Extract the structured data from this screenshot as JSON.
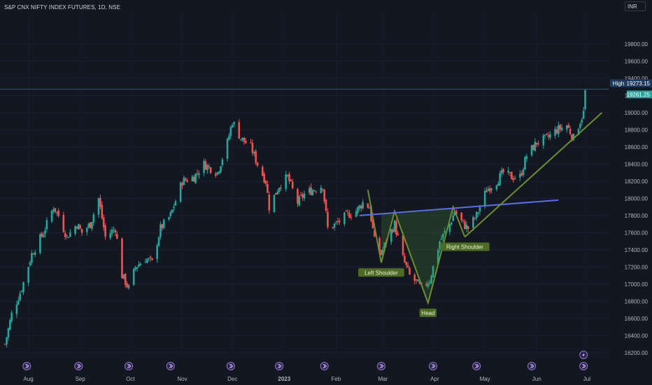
{
  "header": {
    "title": "S&P CNX NIFTY INDEX FUTURES, 1D, NSE",
    "currency": "INR"
  },
  "price_tags": {
    "high_label": "High",
    "high_value": "19273.15",
    "last_value": "19261.25"
  },
  "colors": {
    "background": "#131722",
    "up": "#26a69a",
    "down": "#ef5350",
    "pattern_line": "#6b8f2f",
    "neckline": "#5b6ee1",
    "label_bg": "#4e6b26",
    "last_tag": "#26a69a",
    "high_tag": "#1e3a5f"
  },
  "chart_data": {
    "type": "candlestick",
    "title": "S&P CNX NIFTY INDEX FUTURES, 1D, NSE",
    "x_tick_labels": [
      "Aug",
      "Sep",
      "Oct",
      "Nov",
      "Dec",
      "2023",
      "Feb",
      "Mar",
      "Apr",
      "May",
      "Jun",
      "Jul"
    ],
    "y_tick_labels": [
      19800,
      19600,
      19400,
      19200,
      19000,
      18800,
      18600,
      18400,
      18200,
      18000,
      17800,
      17600,
      17400,
      17200,
      17000,
      16800,
      16600,
      16400,
      16200
    ],
    "ylim": [
      16150,
      20150
    ],
    "x_range": [
      "2022-07-15",
      "2023-07-14"
    ],
    "high_line": 19273.15,
    "last_price": 19261.25,
    "price_path_close": [
      [
        "2022-07-18",
        16300
      ],
      [
        "2022-07-22",
        16650
      ],
      [
        "2022-07-28",
        16950
      ],
      [
        "2022-08-03",
        17350
      ],
      [
        "2022-08-10",
        17600
      ],
      [
        "2022-08-16",
        17900
      ],
      [
        "2022-08-19",
        17800
      ],
      [
        "2022-08-24",
        17550
      ],
      [
        "2022-08-30",
        17700
      ],
      [
        "2022-09-02",
        17600
      ],
      [
        "2022-09-07",
        17700
      ],
      [
        "2022-09-12",
        18000
      ],
      [
        "2022-09-16",
        17550
      ],
      [
        "2022-09-22",
        17650
      ],
      [
        "2022-09-26",
        17100
      ],
      [
        "2022-09-30",
        16950
      ],
      [
        "2022-10-04",
        17200
      ],
      [
        "2022-10-10",
        17300
      ],
      [
        "2022-10-14",
        17250
      ],
      [
        "2022-10-19",
        17650
      ],
      [
        "2022-10-25",
        17800
      ],
      [
        "2022-11-01",
        18200
      ],
      [
        "2022-11-08",
        18250
      ],
      [
        "2022-11-14",
        18400
      ],
      [
        "2022-11-18",
        18350
      ],
      [
        "2022-11-22",
        18300
      ],
      [
        "2022-11-28",
        18650
      ],
      [
        "2022-12-01",
        18900
      ],
      [
        "2022-12-06",
        18700
      ],
      [
        "2022-12-12",
        18600
      ],
      [
        "2022-12-16",
        18400
      ],
      [
        "2022-12-21",
        18200
      ],
      [
        "2022-12-23",
        17900
      ],
      [
        "2022-12-29",
        18150
      ],
      [
        "2023-01-03",
        18250
      ],
      [
        "2023-01-09",
        17950
      ],
      [
        "2023-01-13",
        18050
      ],
      [
        "2023-01-18",
        18100
      ],
      [
        "2023-01-24",
        18150
      ],
      [
        "2023-01-27",
        17650
      ],
      [
        "2023-02-01",
        17700
      ],
      [
        "2023-02-07",
        17800
      ],
      [
        "2023-02-13",
        17850
      ],
      [
        "2023-02-17",
        17950
      ],
      [
        "2023-02-21",
        17900
      ],
      [
        "2023-02-24",
        17500
      ],
      [
        "2023-02-28",
        17350
      ],
      [
        "2023-03-03",
        17500
      ],
      [
        "2023-03-08",
        17700
      ],
      [
        "2023-03-13",
        17300
      ],
      [
        "2023-03-17",
        17100
      ],
      [
        "2023-03-22",
        17000
      ],
      [
        "2023-03-24",
        16950
      ],
      [
        "2023-03-29",
        17050
      ],
      [
        "2023-04-04",
        17500
      ],
      [
        "2023-04-10",
        17700
      ],
      [
        "2023-04-13",
        17850
      ],
      [
        "2023-04-18",
        17700
      ],
      [
        "2023-04-21",
        17650
      ],
      [
        "2023-04-26",
        17800
      ],
      [
        "2023-05-02",
        18100
      ],
      [
        "2023-05-08",
        18200
      ],
      [
        "2023-05-12",
        18300
      ],
      [
        "2023-05-17",
        18250
      ],
      [
        "2023-05-22",
        18250
      ],
      [
        "2023-05-26",
        18500
      ],
      [
        "2023-06-01",
        18650
      ],
      [
        "2023-06-07",
        18700
      ],
      [
        "2023-06-13",
        18800
      ],
      [
        "2023-06-19",
        18850
      ],
      [
        "2023-06-23",
        18700
      ],
      [
        "2023-06-27",
        18900
      ],
      [
        "2023-06-29",
        19000
      ],
      [
        "2023-06-30",
        19261.25
      ]
    ],
    "annotations": [
      {
        "type": "head_and_shoulders",
        "points": [
          [
            "2023-02-20",
            18100
          ],
          [
            "2023-02-28",
            17250
          ],
          [
            "2023-03-08",
            17850
          ],
          [
            "2023-03-28",
            16780
          ],
          [
            "2023-04-12",
            17900
          ],
          [
            "2023-04-19",
            17550
          ]
        ],
        "labels": [
          {
            "text": "Left Shoulder",
            "date": "2023-02-28",
            "value": 17250
          },
          {
            "text": "Head",
            "date": "2023-03-28",
            "value": 16780
          },
          {
            "text": "Right Shoulder",
            "date": "2023-04-19",
            "value": 17550
          }
        ]
      },
      {
        "type": "neckline",
        "points": [
          [
            "2023-02-15",
            17800
          ],
          [
            "2023-06-14",
            17980
          ]
        ]
      },
      {
        "type": "trendline",
        "points": [
          [
            "2023-04-19",
            17550
          ],
          [
            "2023-07-10",
            19000
          ]
        ]
      }
    ],
    "event_markers": [
      "2022-07-31",
      "2022-08-31",
      "2022-09-30",
      "2022-10-25",
      "2022-11-30",
      "2022-12-29",
      "2023-01-25",
      "2023-02-28",
      "2023-03-31",
      "2023-04-26",
      "2023-05-29",
      "2023-06-29"
    ]
  }
}
